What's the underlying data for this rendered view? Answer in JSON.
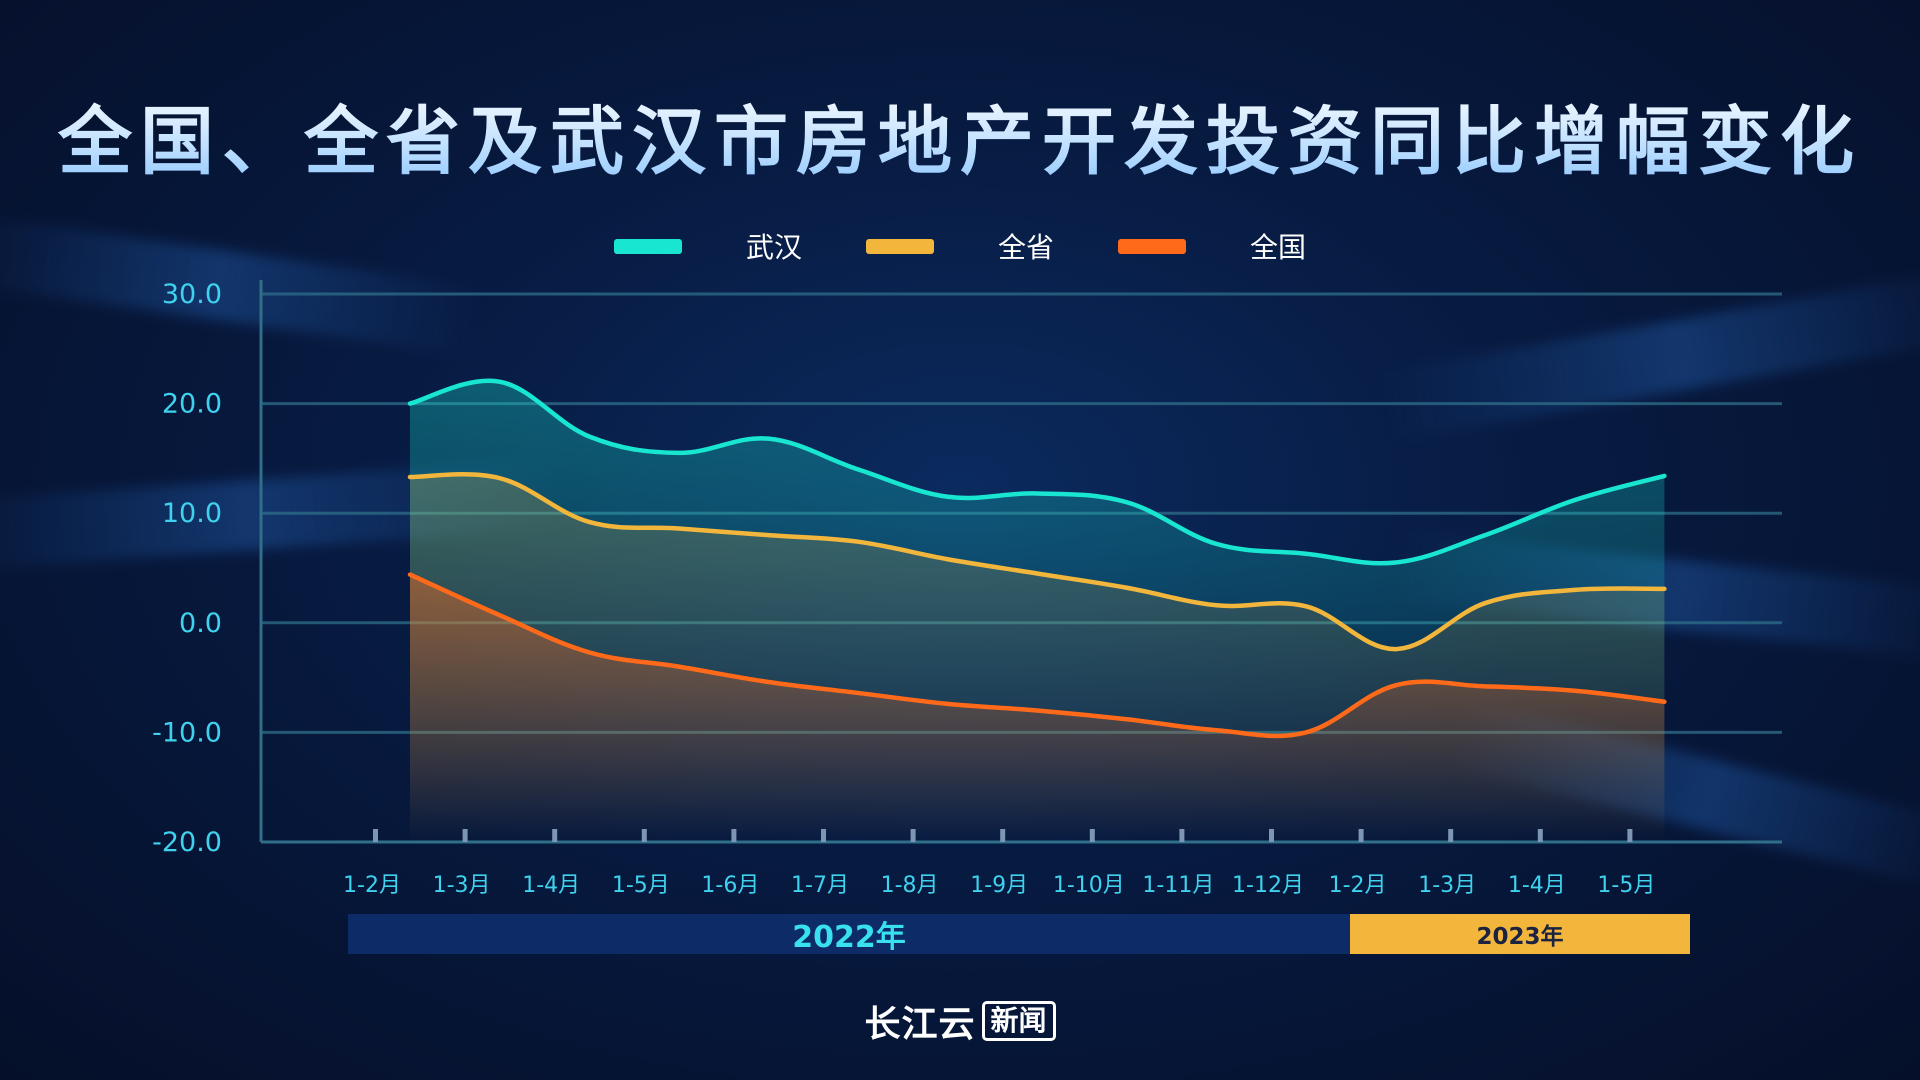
{
  "title": "全国、全省及武汉市房地产开发投资同比增幅变化",
  "colors": {
    "wuhan": "#19e6d0",
    "province": "#f2b63c",
    "national": "#ff6a1a",
    "grid": "#2f6f8a",
    "tick_label": "#3fd2ee"
  },
  "chart_data": {
    "type": "line",
    "title": "全国、全省及武汉市房地产开发投资同比增幅变化",
    "xlabel": "",
    "ylabel": "",
    "ylim": [
      -20,
      30
    ],
    "yticks": [
      "30.0",
      "20.0",
      "10.0",
      "0.0",
      "-10.0",
      "-20.0"
    ],
    "grid": true,
    "legend_position": "top-center",
    "categories": [
      "1-2月",
      "1-3月",
      "1-4月",
      "1-5月",
      "1-6月",
      "1-7月",
      "1-8月",
      "1-9月",
      "1-10月",
      "1-11月",
      "1-12月",
      "1-2月",
      "1-3月",
      "1-4月",
      "1-5月"
    ],
    "series": [
      {
        "name": "武汉",
        "color": "#19e6d0",
        "values": [
          20.0,
          22.0,
          17.0,
          15.5,
          16.8,
          14.0,
          11.5,
          11.8,
          11.0,
          7.2,
          6.3,
          5.5,
          8.0,
          11.2,
          13.4
        ]
      },
      {
        "name": "全省",
        "color": "#f2b63c",
        "values": [
          13.3,
          13.2,
          9.2,
          8.6,
          8.0,
          7.4,
          5.8,
          4.5,
          3.2,
          1.6,
          1.5,
          -2.4,
          1.8,
          3.0,
          3.1
        ]
      },
      {
        "name": "全国",
        "color": "#ff6a1a",
        "values": [
          4.4,
          0.7,
          -2.7,
          -4.0,
          -5.4,
          -6.4,
          -7.4,
          -8.0,
          -8.8,
          -9.8,
          -10.0,
          -5.7,
          -5.8,
          -6.2,
          -7.2
        ]
      }
    ],
    "periods": [
      {
        "label": "2022年",
        "count": 11
      },
      {
        "label": "2023年",
        "count": 4
      }
    ]
  },
  "brand": {
    "main": "长江云",
    "box": "新闻"
  }
}
